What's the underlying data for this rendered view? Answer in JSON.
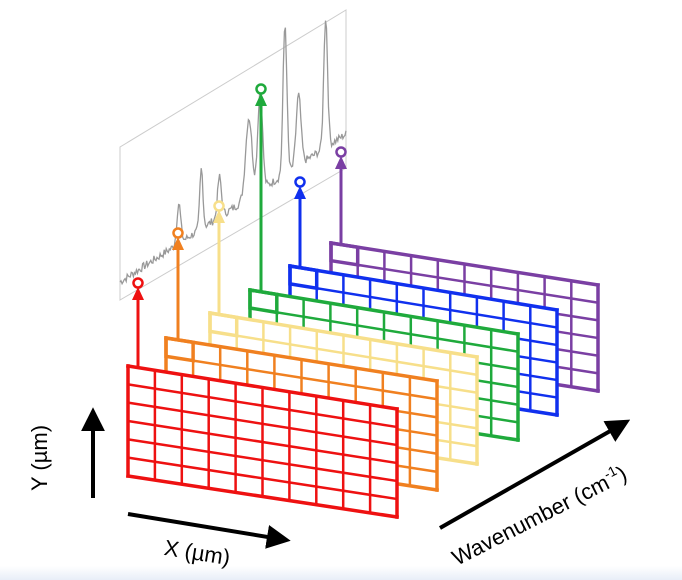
{
  "labels": {
    "y_axis": "Y (µm)",
    "x_axis": "X (µm)",
    "wavenumber_axis_text": "Wavenumber (cm",
    "wavenumber_axis_sup": "-1",
    "wavenumber_axis_close": ")"
  },
  "grid_layers": [
    {
      "name": "red-grid-layer",
      "color": "#ee1111"
    },
    {
      "name": "orange-grid-layer",
      "color": "#f08020"
    },
    {
      "name": "yellow-grid-layer",
      "color": "#f7df8a"
    },
    {
      "name": "green-grid-layer",
      "color": "#1faa3c"
    },
    {
      "name": "blue-grid-layer",
      "color": "#1030ee"
    },
    {
      "name": "purple-grid-layer",
      "color": "#7a3fa3"
    }
  ],
  "spectrum": {
    "line_color": "#999999",
    "frame_color": "#cccccc"
  },
  "axis_color": "#000000"
}
